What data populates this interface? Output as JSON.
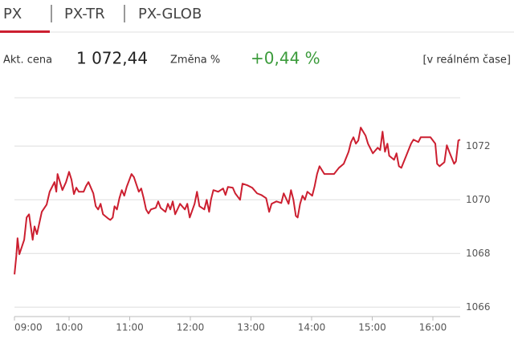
{
  "tabs": [
    "PX",
    "PX-TR",
    "PX-GLOB"
  ],
  "quote": {
    "price_label": "Akt. cena",
    "price": "1 072,44",
    "change_label": "Změna %",
    "change": "+0,44 %",
    "realtime": "[v reálném čase]"
  },
  "chart_data": {
    "type": "line",
    "color": "#cc1f30",
    "grid": true,
    "y_axis_side": "right",
    "xlim": [
      9,
      16.5
    ],
    "xticks": [
      {
        "value": 9,
        "label": "09:00"
      },
      {
        "value": 10,
        "label": "10:00"
      },
      {
        "value": 11,
        "label": "11:00"
      },
      {
        "value": 12,
        "label": "12:00"
      },
      {
        "value": 13,
        "label": "13:00"
      },
      {
        "value": 14,
        "label": "14:00"
      },
      {
        "value": 15,
        "label": "15:00"
      },
      {
        "value": 16,
        "label": "16:00"
      }
    ],
    "ylim": [
      1065.65,
      1073.8
    ],
    "yticks": [
      1066,
      1068,
      1070,
      1072
    ],
    "x": [
      9.1,
      9.13,
      9.15,
      9.18,
      9.26,
      9.3,
      9.34,
      9.4,
      9.43,
      9.47,
      9.55,
      9.63,
      9.68,
      9.76,
      9.79,
      9.81,
      9.89,
      9.95,
      10.0,
      10.04,
      10.08,
      10.12,
      10.16,
      10.24,
      10.28,
      10.32,
      10.4,
      10.44,
      10.48,
      10.52,
      10.56,
      10.64,
      10.68,
      10.72,
      10.75,
      10.79,
      10.83,
      10.87,
      10.91,
      10.95,
      10.99,
      11.03,
      11.07,
      11.15,
      11.19,
      11.23,
      11.27,
      11.31,
      11.35,
      11.43,
      11.47,
      11.51,
      11.59,
      11.63,
      11.67,
      11.71,
      11.75,
      11.83,
      11.91,
      11.95,
      11.99,
      12.07,
      12.11,
      12.15,
      12.23,
      12.27,
      12.31,
      12.34,
      12.38,
      12.46,
      12.54,
      12.58,
      12.62,
      12.7,
      12.74,
      12.82,
      12.86,
      12.94,
      13.02,
      13.1,
      13.17,
      13.25,
      13.3,
      13.34,
      13.42,
      13.5,
      13.54,
      13.62,
      13.66,
      13.7,
      13.74,
      13.77,
      13.81,
      13.85,
      13.89,
      13.93,
      14.01,
      14.05,
      14.09,
      14.13,
      14.21,
      14.29,
      14.37,
      14.45,
      14.53,
      14.61,
      14.65,
      14.69,
      14.73,
      14.77,
      14.81,
      14.85,
      14.89,
      14.93,
      15.01,
      15.09,
      15.13,
      15.17,
      15.21,
      15.25,
      15.28,
      15.36,
      15.4,
      15.44,
      15.48,
      15.56,
      15.64,
      15.68,
      15.76,
      15.8,
      15.96,
      16.04,
      16.07,
      16.11,
      16.19,
      16.23,
      16.27,
      16.35,
      16.38,
      16.42,
      16.45
    ],
    "values": [
      1067.22,
      1067.91,
      1068.57,
      1067.97,
      1068.51,
      1069.34,
      1069.46,
      1068.51,
      1069.01,
      1068.72,
      1069.55,
      1069.82,
      1070.3,
      1070.66,
      1070.3,
      1070.96,
      1070.36,
      1070.66,
      1071.04,
      1070.75,
      1070.21,
      1070.45,
      1070.3,
      1070.3,
      1070.51,
      1070.66,
      1070.24,
      1069.76,
      1069.64,
      1069.85,
      1069.46,
      1069.31,
      1069.25,
      1069.34,
      1069.76,
      1069.64,
      1070.06,
      1070.36,
      1070.15,
      1070.48,
      1070.72,
      1070.96,
      1070.84,
      1070.3,
      1070.42,
      1070.06,
      1069.64,
      1069.49,
      1069.64,
      1069.7,
      1069.94,
      1069.7,
      1069.55,
      1069.85,
      1069.64,
      1069.94,
      1069.46,
      1069.85,
      1069.64,
      1069.85,
      1069.34,
      1069.85,
      1070.3,
      1069.76,
      1069.64,
      1070.0,
      1069.55,
      1070.0,
      1070.36,
      1070.3,
      1070.42,
      1070.18,
      1070.48,
      1070.45,
      1070.24,
      1070.0,
      1070.6,
      1070.54,
      1070.45,
      1070.24,
      1070.18,
      1070.06,
      1069.55,
      1069.85,
      1069.94,
      1069.88,
      1070.24,
      1069.85,
      1070.36,
      1070.0,
      1069.4,
      1069.34,
      1069.85,
      1070.15,
      1070.0,
      1070.3,
      1070.15,
      1070.51,
      1070.96,
      1071.25,
      1070.96,
      1070.96,
      1070.96,
      1071.19,
      1071.34,
      1071.79,
      1072.15,
      1072.33,
      1072.09,
      1072.21,
      1072.69,
      1072.54,
      1072.39,
      1072.09,
      1071.73,
      1071.94,
      1071.85,
      1072.54,
      1071.79,
      1072.09,
      1071.64,
      1071.49,
      1071.73,
      1071.25,
      1071.19,
      1071.64,
      1072.09,
      1072.24,
      1072.15,
      1072.33,
      1072.33,
      1072.09,
      1071.34,
      1071.25,
      1071.4,
      1072.03,
      1071.79,
      1071.34,
      1071.43,
      1072.21,
      1072.24
    ]
  }
}
